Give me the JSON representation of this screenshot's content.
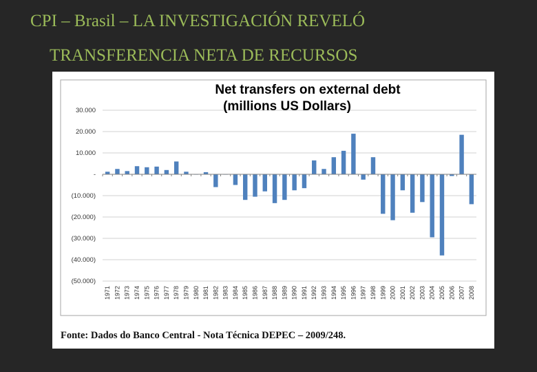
{
  "slide": {
    "title_line1": "CPI – Brasil – LA INVESTIGACIÓN REVELÓ",
    "title_line2": "TRANSFERENCIA NETA DE RECURSOS"
  },
  "chart_data": {
    "type": "bar",
    "title_line1": "Net transfers on external debt",
    "title_line2": "(millions US Dollars)",
    "xlabel": "",
    "ylabel": "",
    "ylim": [
      -50000,
      30000
    ],
    "yticks": [
      30000,
      20000,
      10000,
      0,
      -10000,
      -20000,
      -30000,
      -40000,
      -50000
    ],
    "ytick_labels": [
      "30.000",
      "20.000",
      "10.000",
      "-",
      "(10.000)",
      "(20.000)",
      "(30.000)",
      "(40.000)",
      "(50.000)"
    ],
    "grid": true,
    "legend": "none",
    "bar_color": "#4f81bd",
    "categories": [
      "1971",
      "1972",
      "1973",
      "1974",
      "1975",
      "1976",
      "1977",
      "1978",
      "1979",
      "1980",
      "1981",
      "1982",
      "1983",
      "1984",
      "1985",
      "1986",
      "1987",
      "1988",
      "1989",
      "1990",
      "1991",
      "1992",
      "1993",
      "1994",
      "1995",
      "1996",
      "1997",
      "1998",
      "1999",
      "2000",
      "2001",
      "2002",
      "2003",
      "2004",
      "2005",
      "2006",
      "2007",
      "2008"
    ],
    "values": [
      1200,
      2500,
      1500,
      3800,
      3300,
      3600,
      2000,
      6000,
      1200,
      -200,
      1000,
      -6000,
      -200,
      -5000,
      -12000,
      -10500,
      -8000,
      -13500,
      -12000,
      -7500,
      -6500,
      6500,
      2500,
      8000,
      11000,
      19000,
      -2500,
      8000,
      -18500,
      -21500,
      -7500,
      -18000,
      -13000,
      -29500,
      -38000,
      -800,
      18500,
      -14000
    ]
  },
  "source": "Fonte: Dados do Banco Central - Nota Técnica DEPEC – 2009/248."
}
